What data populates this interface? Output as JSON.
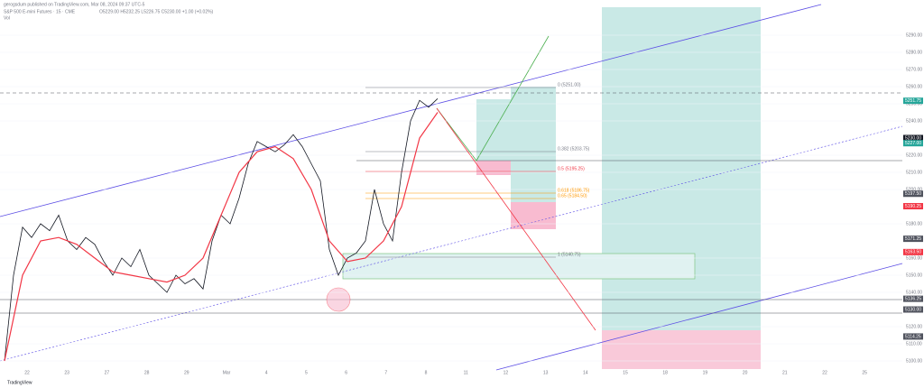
{
  "header": {
    "title": "gerogsdum published on TradingView.com, Mar 08, 2024 09:37 UTC-5",
    "symbol": "S&P 500 E-mini Futures · 15 · CME",
    "ohlc": "O5229.00 H5232.25 L5226.75 C5230.00 +1.00 (+0.02%)",
    "volume": "Vol"
  },
  "chart": {
    "ylim": [
      5300,
      5090
    ],
    "yticks": [
      {
        "value": 5290,
        "label": "5290.00"
      },
      {
        "value": 5280,
        "label": "5280.00"
      },
      {
        "value": 5270,
        "label": "5270.00"
      },
      {
        "value": 5260,
        "label": "5260.00"
      },
      {
        "value": 5250,
        "label": "5250.00"
      },
      {
        "value": 5240,
        "label": "5240.00"
      },
      {
        "value": 5220,
        "label": "5220.00"
      },
      {
        "value": 5210,
        "label": "5210.00"
      },
      {
        "value": 5200,
        "label": "5200.00"
      },
      {
        "value": 5180,
        "label": "5180.00"
      },
      {
        "value": 5160,
        "label": "5160.00"
      },
      {
        "value": 5150,
        "label": "5150.00"
      },
      {
        "value": 5140,
        "label": "5140.00"
      },
      {
        "value": 5120,
        "label": "5120.00"
      },
      {
        "value": 5110,
        "label": "5110.00"
      },
      {
        "value": 5100,
        "label": "5100.00"
      }
    ],
    "markers": [
      {
        "value": 5251.75,
        "label": "5251.75",
        "color": "#26a69a"
      },
      {
        "value": 5230,
        "label": "5230.00",
        "color": "#131722"
      },
      {
        "value": 5227,
        "label": "5227.00",
        "color": "#26a69a"
      },
      {
        "value": 5197.5,
        "label": "5197.50",
        "color": "#50535e"
      },
      {
        "value": 5190.25,
        "label": "5190.25",
        "color": "#f23645"
      },
      {
        "value": 5171.25,
        "label": "5171.25",
        "color": "#50535e"
      },
      {
        "value": 5163.5,
        "label": "5163.50",
        "color": "#f23645"
      },
      {
        "value": 5136.25,
        "label": "5136.25",
        "color": "#50535e"
      },
      {
        "value": 5130,
        "label": "5130.00",
        "color": "#50535e"
      },
      {
        "value": 5114.25,
        "label": "5114.25",
        "color": "#50535e"
      }
    ],
    "dates": [
      "22",
      "23",
      "27",
      "28",
      "29",
      "Mar",
      "4",
      "5",
      "6",
      "7",
      "8",
      "11",
      "12",
      "13",
      "14",
      "15",
      "18",
      "19",
      "20",
      "21",
      "22",
      "25"
    ],
    "close": [
      5100,
      5150,
      5178,
      5172,
      5180,
      5176,
      5185,
      5170,
      5165,
      5172,
      5168,
      5158,
      5150,
      5160,
      5155,
      5165,
      5150,
      5145,
      5140,
      5150,
      5145,
      5148,
      5142,
      5170,
      5185,
      5180,
      5195,
      5215,
      5228,
      5225,
      5222,
      5226,
      5232,
      5225,
      5215,
      5205,
      5165,
      5150,
      5160,
      5163,
      5170,
      5200,
      5180,
      5170,
      5210,
      5240,
      5252,
      5248,
      5253
    ],
    "ma": [
      5100,
      5150,
      5170,
      5172,
      5168,
      5160,
      5152,
      5150,
      5148,
      5146,
      5150,
      5160,
      5185,
      5210,
      5222,
      5225,
      5218,
      5200,
      5170,
      5158,
      5160,
      5170,
      5190,
      5230,
      5245
    ],
    "fib": [
      "0 (5251.00)",
      "0.382 (5203.75)",
      "0.5 (5195.25)",
      "0.618 (5186.75)",
      "0.65 (5184.50)",
      "1 (5140.75)"
    ]
  },
  "footer": "TradingView"
}
